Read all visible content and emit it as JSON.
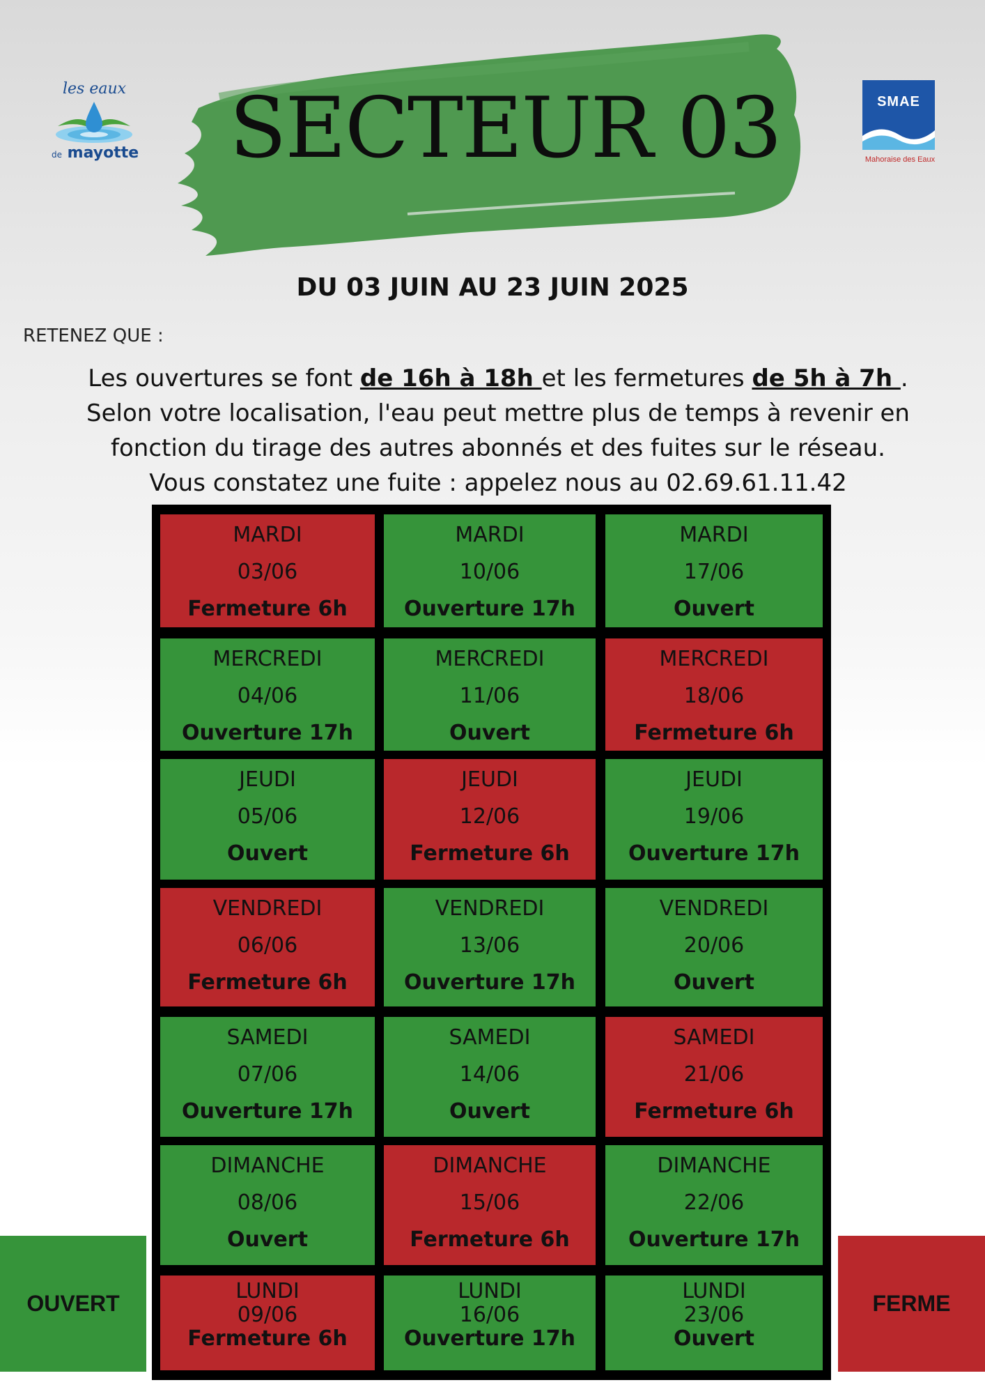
{
  "logos": {
    "left": {
      "line1": "les eaux",
      "prefix": "de",
      "line2": "mayotte"
    },
    "right": {
      "name": "SMAE",
      "subtitle": "Mahoraise des Eaux"
    }
  },
  "title": "SECTEUR 03",
  "period": "DU 03 JUIN AU 23 JUIN 2025",
  "notice": {
    "heading": "RETENEZ QUE :",
    "text_1": "Les ouvertures se font ",
    "opening_hours": "de 16h à 18h ",
    "text_2": "et les fermetures ",
    "closing_hours": "de 5h à 7h ",
    "text_3": ". Selon votre localisation, l'eau peut mettre plus de temps à revenir en fonction du tirage des autres abonnés et des fuites sur le réseau.",
    "leak_line": "Vous constatez une fuite : appelez nous au 02.69.61.11.42"
  },
  "colors": {
    "open": "#36943a",
    "closed": "#b9282c"
  },
  "schedule": [
    [
      {
        "day": "MARDI",
        "date": "03/06",
        "status": "Fermeture 6h",
        "state": "closed"
      },
      {
        "day": "MARDI",
        "date": "10/06",
        "status": "Ouverture 17h",
        "state": "open"
      },
      {
        "day": "MARDI",
        "date": "17/06",
        "status": "Ouvert",
        "state": "open"
      }
    ],
    [
      {
        "day": "MERCREDI",
        "date": "04/06",
        "status": "Ouverture 17h",
        "state": "open"
      },
      {
        "day": "MERCREDI",
        "date": "11/06",
        "status": "Ouvert",
        "state": "open"
      },
      {
        "day": "MERCREDI",
        "date": "18/06",
        "status": "Fermeture 6h",
        "state": "closed"
      }
    ],
    [
      {
        "day": "JEUDI",
        "date": "05/06",
        "status": "Ouvert",
        "state": "open"
      },
      {
        "day": "JEUDI",
        "date": "12/06",
        "status": "Fermeture 6h",
        "state": "closed"
      },
      {
        "day": "JEUDI",
        "date": "19/06",
        "status": "Ouverture 17h",
        "state": "open"
      }
    ],
    [
      {
        "day": "VENDREDI",
        "date": "06/06",
        "status": "Fermeture 6h",
        "state": "closed"
      },
      {
        "day": "VENDREDI",
        "date": "13/06",
        "status": "Ouverture 17h",
        "state": "open"
      },
      {
        "day": "VENDREDI",
        "date": "20/06",
        "status": "Ouvert",
        "state": "open"
      }
    ],
    [
      {
        "day": "SAMEDI",
        "date": "07/06",
        "status": "Ouverture 17h",
        "state": "open"
      },
      {
        "day": "SAMEDI",
        "date": "14/06",
        "status": "Ouvert",
        "state": "open"
      },
      {
        "day": "SAMEDI",
        "date": "21/06",
        "status": "Fermeture 6h",
        "state": "closed"
      }
    ],
    [
      {
        "day": "DIMANCHE",
        "date": "08/06",
        "status": "Ouvert",
        "state": "open"
      },
      {
        "day": "DIMANCHE",
        "date": "15/06",
        "status": "Fermeture 6h",
        "state": "closed"
      },
      {
        "day": "DIMANCHE",
        "date": "22/06",
        "status": "Ouverture 17h",
        "state": "open"
      }
    ],
    [
      {
        "day": "LUNDI",
        "date": "09/06",
        "status": "Fermeture 6h",
        "state": "closed"
      },
      {
        "day": "LUNDI",
        "date": "16/06",
        "status": "Ouverture 17h",
        "state": "open"
      },
      {
        "day": "LUNDI",
        "date": "23/06",
        "status": "Ouvert",
        "state": "open"
      }
    ]
  ],
  "legend": {
    "open_label": "OUVERT",
    "closed_label": "FERME"
  }
}
